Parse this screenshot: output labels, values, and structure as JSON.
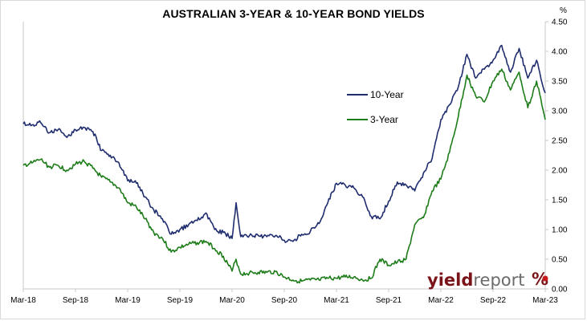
{
  "chart_data": {
    "type": "line",
    "title": "AUSTRALIAN 3-YEAR & 10-YEAR BOND YIELDS",
    "unit": "%",
    "x_range": [
      "2018-03",
      "2023-03"
    ],
    "x_tick_labels": [
      "Mar-18",
      "Sep-18",
      "Mar-19",
      "Sep-19",
      "Mar-20",
      "Sep-20",
      "Mar-21",
      "Sep-21",
      "Mar-22",
      "Sep-22",
      "Mar-23"
    ],
    "y_axis_side": "right",
    "ylim": [
      0,
      4.5
    ],
    "y_tick_labels": [
      "0.00",
      "0.50",
      "1.00",
      "1.50",
      "2.00",
      "2.50",
      "3.00",
      "3.50",
      "4.00",
      "4.50"
    ],
    "grid": false,
    "legend_position": "upper-center",
    "series": [
      {
        "name": "10-Year",
        "color": "#1f2d6e",
        "points": [
          [
            "2018-03",
            2.78
          ],
          [
            "2018-04",
            2.76
          ],
          [
            "2018-05",
            2.8
          ],
          [
            "2018-06",
            2.63
          ],
          [
            "2018-07",
            2.68
          ],
          [
            "2018-08",
            2.55
          ],
          [
            "2018-09",
            2.68
          ],
          [
            "2018-10",
            2.72
          ],
          [
            "2018-11",
            2.65
          ],
          [
            "2018-12",
            2.33
          ],
          [
            "2019-01",
            2.25
          ],
          [
            "2019-02",
            2.12
          ],
          [
            "2019-03",
            1.82
          ],
          [
            "2019-04",
            1.78
          ],
          [
            "2019-05",
            1.55
          ],
          [
            "2019-06",
            1.33
          ],
          [
            "2019-07",
            1.18
          ],
          [
            "2019-08",
            0.92
          ],
          [
            "2019-09",
            1.0
          ],
          [
            "2019-10",
            1.08
          ],
          [
            "2019-11",
            1.15
          ],
          [
            "2019-12",
            1.28
          ],
          [
            "2020-01",
            1.0
          ],
          [
            "2020-02",
            0.95
          ],
          [
            "2020-03",
            0.85
          ],
          [
            "2020-03-15",
            1.45
          ],
          [
            "2020-04",
            0.88
          ],
          [
            "2020-05",
            0.9
          ],
          [
            "2020-06",
            0.9
          ],
          [
            "2020-07",
            0.88
          ],
          [
            "2020-08",
            0.9
          ],
          [
            "2020-09",
            0.82
          ],
          [
            "2020-10",
            0.8
          ],
          [
            "2020-11",
            0.92
          ],
          [
            "2020-12",
            0.97
          ],
          [
            "2021-01",
            1.1
          ],
          [
            "2021-02",
            1.45
          ],
          [
            "2021-03",
            1.78
          ],
          [
            "2021-04",
            1.75
          ],
          [
            "2021-05",
            1.7
          ],
          [
            "2021-06",
            1.55
          ],
          [
            "2021-07",
            1.22
          ],
          [
            "2021-08",
            1.18
          ],
          [
            "2021-09",
            1.48
          ],
          [
            "2021-10",
            1.8
          ],
          [
            "2021-11",
            1.75
          ],
          [
            "2021-12",
            1.65
          ],
          [
            "2022-01",
            1.95
          ],
          [
            "2022-02",
            2.2
          ],
          [
            "2022-03",
            2.85
          ],
          [
            "2022-04",
            3.1
          ],
          [
            "2022-05",
            3.4
          ],
          [
            "2022-06",
            3.95
          ],
          [
            "2022-07",
            3.55
          ],
          [
            "2022-08",
            3.7
          ],
          [
            "2022-09",
            3.85
          ],
          [
            "2022-10",
            4.1
          ],
          [
            "2022-11",
            3.65
          ],
          [
            "2022-12",
            4.05
          ],
          [
            "2023-01",
            3.55
          ],
          [
            "2023-02",
            3.85
          ],
          [
            "2023-03",
            3.3
          ]
        ]
      },
      {
        "name": "3-Year",
        "color": "#1e7d1a",
        "points": [
          [
            "2018-03",
            2.08
          ],
          [
            "2018-04",
            2.12
          ],
          [
            "2018-05",
            2.18
          ],
          [
            "2018-06",
            2.05
          ],
          [
            "2018-07",
            2.08
          ],
          [
            "2018-08",
            2.0
          ],
          [
            "2018-09",
            2.1
          ],
          [
            "2018-10",
            2.15
          ],
          [
            "2018-11",
            2.03
          ],
          [
            "2018-12",
            1.88
          ],
          [
            "2019-01",
            1.8
          ],
          [
            "2019-02",
            1.7
          ],
          [
            "2019-03",
            1.45
          ],
          [
            "2019-04",
            1.38
          ],
          [
            "2019-05",
            1.18
          ],
          [
            "2019-06",
            0.95
          ],
          [
            "2019-07",
            0.85
          ],
          [
            "2019-08",
            0.62
          ],
          [
            "2019-09",
            0.7
          ],
          [
            "2019-10",
            0.75
          ],
          [
            "2019-11",
            0.78
          ],
          [
            "2019-12",
            0.8
          ],
          [
            "2020-01",
            0.68
          ],
          [
            "2020-02",
            0.55
          ],
          [
            "2020-03",
            0.3
          ],
          [
            "2020-03-15",
            0.5
          ],
          [
            "2020-04",
            0.25
          ],
          [
            "2020-05",
            0.27
          ],
          [
            "2020-06",
            0.28
          ],
          [
            "2020-07",
            0.28
          ],
          [
            "2020-08",
            0.29
          ],
          [
            "2020-09",
            0.2
          ],
          [
            "2020-10",
            0.15
          ],
          [
            "2020-11",
            0.13
          ],
          [
            "2020-12",
            0.15
          ],
          [
            "2021-01",
            0.15
          ],
          [
            "2021-02",
            0.18
          ],
          [
            "2021-03",
            0.18
          ],
          [
            "2021-04",
            0.2
          ],
          [
            "2021-05",
            0.2
          ],
          [
            "2021-06",
            0.15
          ],
          [
            "2021-07",
            0.18
          ],
          [
            "2021-08",
            0.5
          ],
          [
            "2021-09",
            0.4
          ],
          [
            "2021-10",
            0.45
          ],
          [
            "2021-11",
            0.5
          ],
          [
            "2021-12",
            1.08
          ],
          [
            "2022-01",
            1.2
          ],
          [
            "2022-02",
            1.65
          ],
          [
            "2022-03",
            1.85
          ],
          [
            "2022-04",
            2.3
          ],
          [
            "2022-05",
            2.9
          ],
          [
            "2022-06",
            3.6
          ],
          [
            "2022-07",
            3.25
          ],
          [
            "2022-08",
            3.15
          ],
          [
            "2022-09",
            3.5
          ],
          [
            "2022-10",
            3.7
          ],
          [
            "2022-11",
            3.35
          ],
          [
            "2022-12",
            3.65
          ],
          [
            "2023-01",
            3.05
          ],
          [
            "2023-02",
            3.5
          ],
          [
            "2023-03",
            2.85
          ]
        ]
      }
    ]
  },
  "watermark": {
    "text": "yieldreport",
    "symbol": "%",
    "color": "#7a1418",
    "accent": "#c81a1f"
  }
}
